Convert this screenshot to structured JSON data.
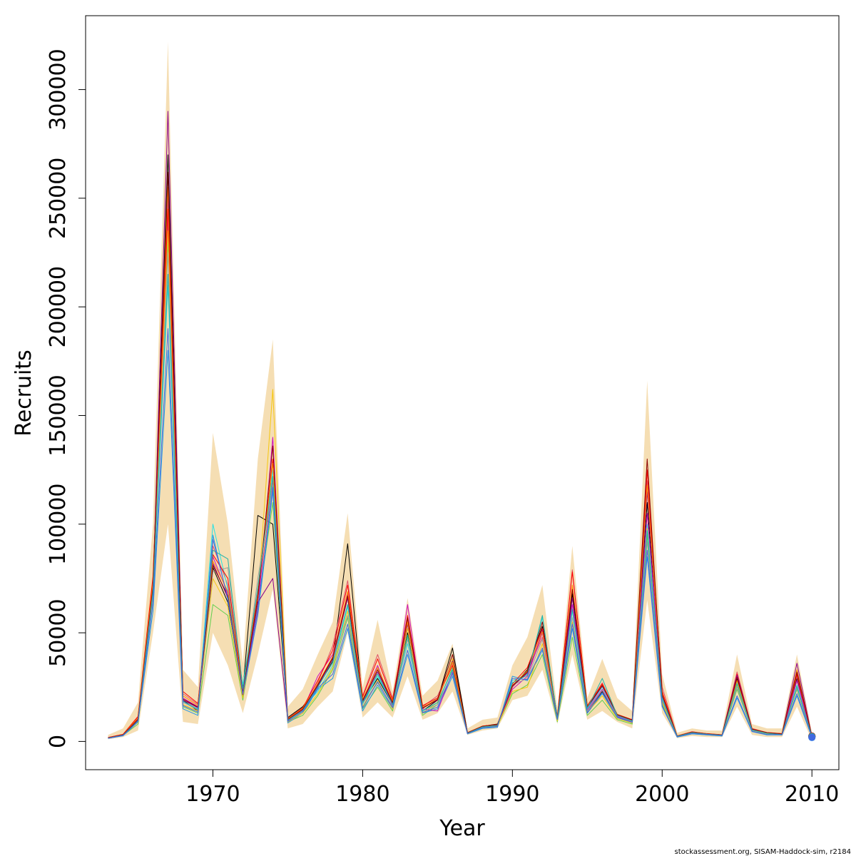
{
  "chart_data": {
    "type": "line",
    "title": "",
    "xlabel": "Year",
    "ylabel": "Recruits",
    "xlim": [
      1961.5,
      2011.8
    ],
    "ylim": [
      -13000,
      334000
    ],
    "x_ticks": [
      1970,
      1980,
      1990,
      2000,
      2010
    ],
    "y_ticks": [
      0,
      50000,
      100000,
      150000,
      200000,
      250000,
      300000
    ],
    "grid": false,
    "legend": "none",
    "band_color": "#f5deb3",
    "band": {
      "x": [
        1963,
        1964,
        1965,
        1966,
        1967,
        1968,
        1969,
        1970,
        1971,
        1972,
        1973,
        1974,
        1975,
        1976,
        1977,
        1978,
        1979,
        1980,
        1981,
        1982,
        1983,
        1984,
        1985,
        1986,
        1987,
        1988,
        1989,
        1990,
        1991,
        1992,
        1993,
        1994,
        1995,
        1996,
        1997,
        1998,
        1999,
        2000,
        2001,
        2002,
        2003,
        2004,
        2005,
        2006,
        2007,
        2008,
        2009,
        2010
      ],
      "lower": [
        1000,
        2000,
        5000,
        50000,
        100000,
        9000,
        8000,
        50000,
        35000,
        13000,
        40000,
        70000,
        6000,
        8000,
        16000,
        23000,
        50000,
        11000,
        18000,
        11000,
        30000,
        10000,
        13000,
        23000,
        3000,
        5000,
        6000,
        19000,
        21000,
        33000,
        8000,
        40000,
        10000,
        14000,
        9000,
        6000,
        65000,
        13000,
        1500,
        2500,
        2000,
        2000,
        16000,
        3000,
        2000,
        2000,
        16000,
        500
      ],
      "upper": [
        3000,
        6000,
        18000,
        100000,
        322000,
        33000,
        25000,
        142000,
        100000,
        36000,
        130000,
        185000,
        16000,
        24000,
        40000,
        55000,
        105000,
        25000,
        56000,
        23000,
        66000,
        21000,
        28000,
        45000,
        6000,
        10000,
        11000,
        35000,
        48000,
        72000,
        15000,
        90000,
        20000,
        38000,
        20000,
        14000,
        166000,
        31000,
        4000,
        6000,
        5000,
        5000,
        40000,
        8000,
        6000,
        6000,
        40000,
        4000
      ]
    },
    "series": [
      {
        "color": "#000000",
        "values": [
          1500,
          3000,
          9500,
          70000,
          270000,
          19000,
          14000,
          80000,
          64000,
          23000,
          104000,
          100000,
          11000,
          16000,
          25000,
          37000,
          91000,
          18000,
          29000,
          17000,
          50000,
          14000,
          19000,
          43000,
          4000,
          7000,
          8000,
          25000,
          33000,
          53000,
          10000,
          68000,
          14000,
          23000,
          12000,
          9000,
          110000,
          18000,
          2500,
          4000,
          3500,
          3000,
          29000,
          5000,
          4000,
          3500,
          29000,
          2500
        ]
      },
      {
        "color": "#df536b",
        "values": [
          1800,
          3200,
          11000,
          72000,
          240000,
          22000,
          17000,
          90000,
          72000,
          25000,
          65000,
          120000,
          10000,
          14000,
          27000,
          44000,
          74000,
          21000,
          40000,
          20000,
          56000,
          16000,
          21000,
          36000,
          4000,
          7000,
          7000,
          25000,
          32000,
          48000,
          11000,
          79000,
          16000,
          27000,
          12000,
          10000,
          120000,
          25000,
          2500,
          4500,
          3500,
          3000,
          32000,
          6000,
          4000,
          3500,
          30000,
          2500
        ]
      },
      {
        "color": "#61d04f",
        "values": [
          1500,
          2800,
          8000,
          65000,
          230000,
          16000,
          13000,
          63000,
          58000,
          19000,
          62000,
          110000,
          9000,
          12000,
          21000,
          33000,
          57000,
          15000,
          25000,
          14000,
          48000,
          12000,
          17000,
          34000,
          3500,
          6000,
          7000,
          22000,
          26000,
          40000,
          9000,
          48000,
          12000,
          19000,
          10000,
          8000,
          95000,
          17000,
          2000,
          3500,
          3000,
          2500,
          24000,
          5000,
          3500,
          3000,
          24000,
          2000
        ]
      },
      {
        "color": "#2297e6",
        "values": [
          1400,
          2600,
          9000,
          60000,
          180000,
          15000,
          12000,
          95000,
          65000,
          21000,
          58000,
          115000,
          8500,
          13000,
          24000,
          29000,
          52000,
          14000,
          26000,
          15000,
          40000,
          13000,
          15000,
          30000,
          3500,
          6000,
          6500,
          30000,
          28000,
          42000,
          10000,
          52000,
          13000,
          22000,
          11000,
          8500,
          85000,
          16000,
          2000,
          3500,
          3000,
          2500,
          20000,
          4500,
          3000,
          3000,
          21000,
          1800
        ]
      },
      {
        "color": "#28e2e5",
        "values": [
          1600,
          3000,
          9800,
          68000,
          210000,
          18000,
          15000,
          100000,
          70000,
          26000,
          70000,
          125000,
          10000,
          15000,
          23000,
          35000,
          62000,
          17000,
          30000,
          17000,
          45000,
          14000,
          18000,
          33000,
          4000,
          6500,
          7500,
          28000,
          31000,
          57000,
          11000,
          60000,
          15000,
          25000,
          12000,
          9500,
          100000,
          20000,
          2300,
          4000,
          3400,
          2800,
          27000,
          5200,
          3800,
          3200,
          26000,
          2200
        ]
      },
      {
        "color": "#cd0bbc",
        "values": [
          1700,
          3100,
          10500,
          74000,
          250000,
          20000,
          16000,
          85000,
          68000,
          22000,
          60000,
          140000,
          9500,
          14500,
          30000,
          40000,
          68000,
          19000,
          35000,
          16000,
          63000,
          15000,
          14000,
          32000,
          3800,
          6800,
          7200,
          24000,
          30000,
          50000,
          10500,
          63000,
          14500,
          24000,
          11500,
          9000,
          105000,
          22000,
          2400,
          4200,
          3500,
          2900,
          30000,
          5500,
          3900,
          3300,
          28000,
          2300
        ]
      },
      {
        "color": "#f5c710",
        "values": [
          1600,
          2900,
          9000,
          66000,
          235000,
          17000,
          14000,
          75000,
          62000,
          20000,
          66000,
          162000,
          9000,
          13000,
          22000,
          34000,
          60000,
          16000,
          28000,
          15000,
          52000,
          13000,
          18000,
          38000,
          3600,
          6400,
          7000,
          23000,
          25000,
          45000,
          9500,
          55000,
          13500,
          21000,
          10500,
          8500,
          98000,
          18000,
          2200,
          3800,
          3200,
          2700,
          26000,
          5000,
          3600,
          3100,
          25000,
          2100
        ]
      },
      {
        "color": "#9e9e9e",
        "values": [
          1500,
          2800,
          9200,
          67000,
          225000,
          18000,
          14500,
          78000,
          80000,
          23000,
          75000,
          118000,
          9800,
          14000,
          26000,
          36000,
          58000,
          17500,
          27000,
          16000,
          47000,
          13500,
          17000,
          31000,
          3700,
          6600,
          7300,
          26000,
          29000,
          47000,
          10200,
          57000,
          14000,
          23500,
          11800,
          9200,
          92000,
          19000,
          2300,
          3900,
          3300,
          2800,
          25000,
          5100,
          3700,
          3100,
          24500,
          2200
        ]
      },
      {
        "color": "#ff0000",
        "values": [
          1800,
          3300,
          11500,
          76000,
          245000,
          23000,
          17500,
          86000,
          75000,
          24000,
          68000,
          130000,
          10500,
          15500,
          28000,
          42000,
          72000,
          20500,
          38000,
          19000,
          58000,
          16500,
          20000,
          35000,
          4100,
          7100,
          7800,
          26500,
          34000,
          52000,
          11500,
          78000,
          16500,
          26500,
          12500,
          10000,
          125000,
          23000,
          2600,
          4400,
          3600,
          3100,
          31000,
          5800,
          4100,
          3600,
          31000,
          2400
        ]
      },
      {
        "color": "#8b008b",
        "values": [
          1600,
          3000,
          10000,
          70000,
          290000,
          19000,
          15500,
          82000,
          66000,
          21500,
          64000,
          75000,
          10200,
          15000,
          25500,
          38000,
          66000,
          18500,
          32000,
          17500,
          54000,
          15500,
          19000,
          37000,
          3900,
          6900,
          7600,
          25500,
          31500,
          51000,
          10800,
          66000,
          15500,
          25500,
          12200,
          9700,
          115000,
          21000,
          2500,
          4300,
          3500,
          3000,
          30500,
          5600,
          3900,
          3400,
          36000,
          2300
        ]
      },
      {
        "color": "#ff8c00",
        "values": [
          1700,
          3100,
          10800,
          73000,
          255000,
          21000,
          16500,
          83000,
          69000,
          23500,
          67000,
          128000,
          10300,
          15200,
          26500,
          39000,
          69000,
          19500,
          34000,
          18500,
          55000,
          15800,
          19500,
          36500,
          4000,
          7000,
          7700,
          25800,
          32500,
          50500,
          11200,
          72000,
          16000,
          26000,
          12400,
          9800,
          118000,
          22000,
          2500,
          4300,
          3500,
          3000,
          28000,
          5700,
          4000,
          3500,
          33000,
          2300
        ]
      },
      {
        "color": "#8b0000",
        "values": [
          1650,
          3050,
          10200,
          71000,
          262000,
          19500,
          15800,
          81000,
          67000,
          22500,
          66000,
          136000,
          10100,
          14800,
          26000,
          38500,
          67000,
          18800,
          33000,
          17800,
          57000,
          15200,
          19300,
          40000,
          3950,
          6950,
          7650,
          25600,
          32000,
          55000,
          11000,
          70000,
          15800,
          25800,
          12300,
          9900,
          130000,
          21500,
          2450,
          4250,
          3450,
          2950,
          29500,
          5650,
          4050,
          3450,
          32000,
          2350
        ]
      },
      {
        "color": "#20b2aa",
        "values": [
          1550,
          2900,
          9400,
          69000,
          215000,
          18500,
          14800,
          88000,
          84000,
          24500,
          71000,
          122000,
          9700,
          14200,
          25000,
          36500,
          63000,
          17800,
          31000,
          16800,
          49000,
          14200,
          17800,
          33000,
          3750,
          6700,
          7400,
          27000,
          30500,
          58000,
          10600,
          61000,
          15200,
          29000,
          11900,
          9400,
          97000,
          19500,
          2350,
          4050,
          3350,
          2850,
          26500,
          5300,
          3750,
          3150,
          25500,
          2250
        ]
      },
      {
        "color": "#4169e1",
        "values": [
          1450,
          2750,
          9100,
          64000,
          190000,
          16500,
          13500,
          93000,
          66000,
          22000,
          61000,
          117000,
          9200,
          13600,
          24500,
          31000,
          54000,
          15500,
          27500,
          15500,
          42000,
          13200,
          15800,
          31500,
          3550,
          6300,
          6900,
          29000,
          28500,
          43000,
          10100,
          54000,
          13200,
          22500,
          11200,
          8800,
          88000,
          16500,
          2100,
          3650,
          3150,
          2650,
          21000,
          4700,
          3200,
          3050,
          22000,
          1900
        ]
      }
    ]
  },
  "footer": {
    "text": "stockassessment.org, SISAM-Haddock-sim, r2184"
  }
}
